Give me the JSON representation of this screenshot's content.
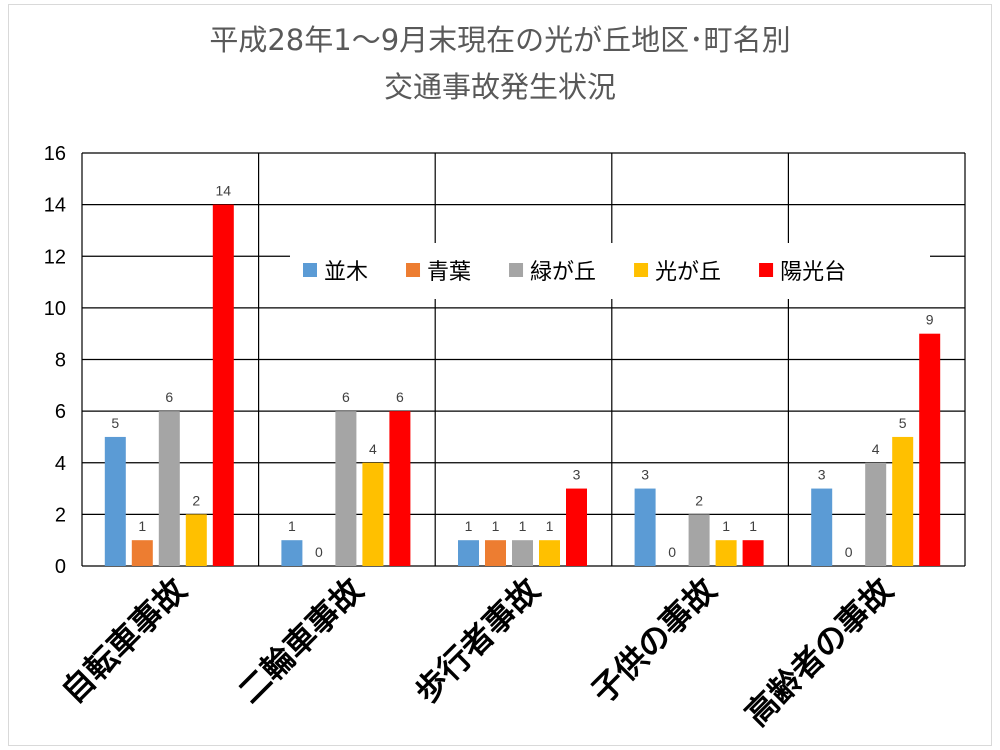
{
  "chart_data": {
    "type": "bar",
    "title_lines": [
      "平成28年1～9月末現在の光が丘地区･町名別",
      "交通事故発生状況"
    ],
    "categories": [
      "自転車事故",
      "二輪車事故",
      "歩行者事故",
      "子供の事故",
      "高齢者の事故"
    ],
    "series": [
      {
        "name": "並木",
        "color": "#5b9bd5",
        "values": [
          5,
          1,
          1,
          3,
          3
        ]
      },
      {
        "name": "青葉",
        "color": "#ed7d31",
        "values": [
          1,
          0,
          1,
          0,
          0
        ]
      },
      {
        "name": "緑が丘",
        "color": "#a5a5a5",
        "values": [
          6,
          6,
          1,
          2,
          4
        ]
      },
      {
        "name": "光が丘",
        "color": "#ffc000",
        "values": [
          2,
          4,
          1,
          1,
          5
        ]
      },
      {
        "name": "陽光台",
        "color": "#ff0000",
        "values": [
          14,
          6,
          3,
          1,
          9
        ]
      }
    ],
    "ylim": [
      0,
      16
    ],
    "yticks": [
      0,
      2,
      4,
      6,
      8,
      10,
      12,
      14,
      16
    ],
    "grid": true,
    "legend_position": "inside-top"
  }
}
